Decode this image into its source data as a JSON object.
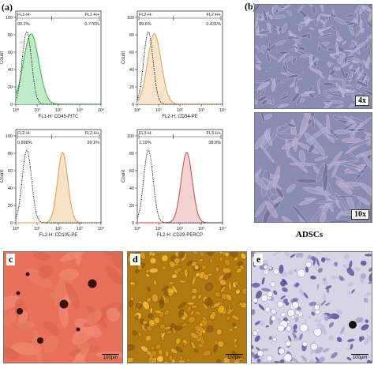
{
  "panel_letters": {
    "a": "(a)",
    "b": "(b)",
    "c": "c",
    "d": "d",
    "e": "e"
  },
  "flow_panels": [
    {
      "xlabel": "FL1-H: CD45-FITC",
      "left_gate": "FL1-H-",
      "left_pct": "99.2%",
      "right_gate": "FL1-H+",
      "right_pct": "0.776%",
      "color": "#2db84a",
      "fill": "#b6e6bf",
      "peak": 0.18,
      "width": 0.09
    },
    {
      "xlabel": "FL2-H: CD34-PE",
      "left_gate": "FL2-H-",
      "left_pct": "99.6%",
      "right_gate": "FL2-H+",
      "right_pct": "0.431%",
      "color": "#e0a050",
      "fill": "#f7dfc2",
      "peak": 0.2,
      "width": 0.08
    },
    {
      "xlabel": "FL2-H: CD105-PE",
      "left_gate": "FL2-H-",
      "left_pct": "0.898%",
      "right_gate": "FL2-H+",
      "right_pct": "99.1%",
      "color": "#e39a3a",
      "fill": "#f6dcbd",
      "peak": 0.55,
      "width": 0.06
    },
    {
      "xlabel": "FL2-H: CD29-PERCP",
      "left_gate": "FL3-H-",
      "left_pct": "1.19%",
      "right_gate": "FL3-H+",
      "right_pct": "98.8%",
      "color": "#c94848",
      "fill": "#f0caca",
      "peak": 0.58,
      "width": 0.065
    }
  ],
  "y_ticks": [
    "0",
    "20",
    "40",
    "60",
    "80",
    "100"
  ],
  "x_ticks": [
    "10⁰",
    "10¹",
    "10²",
    "10³",
    "10⁴"
  ],
  "b_mag_top": "4x",
  "b_mag_bottom": "10x",
  "b_caption": "ADSCs",
  "scale_c": "100μm",
  "scale_d": "100μm",
  "scale_e": "100μm",
  "colors": {
    "c_bg": "#e8705a",
    "d_bg": "#b07a10",
    "e_bg": "#d7d4e6",
    "b_bg": "#8a8bb2"
  }
}
